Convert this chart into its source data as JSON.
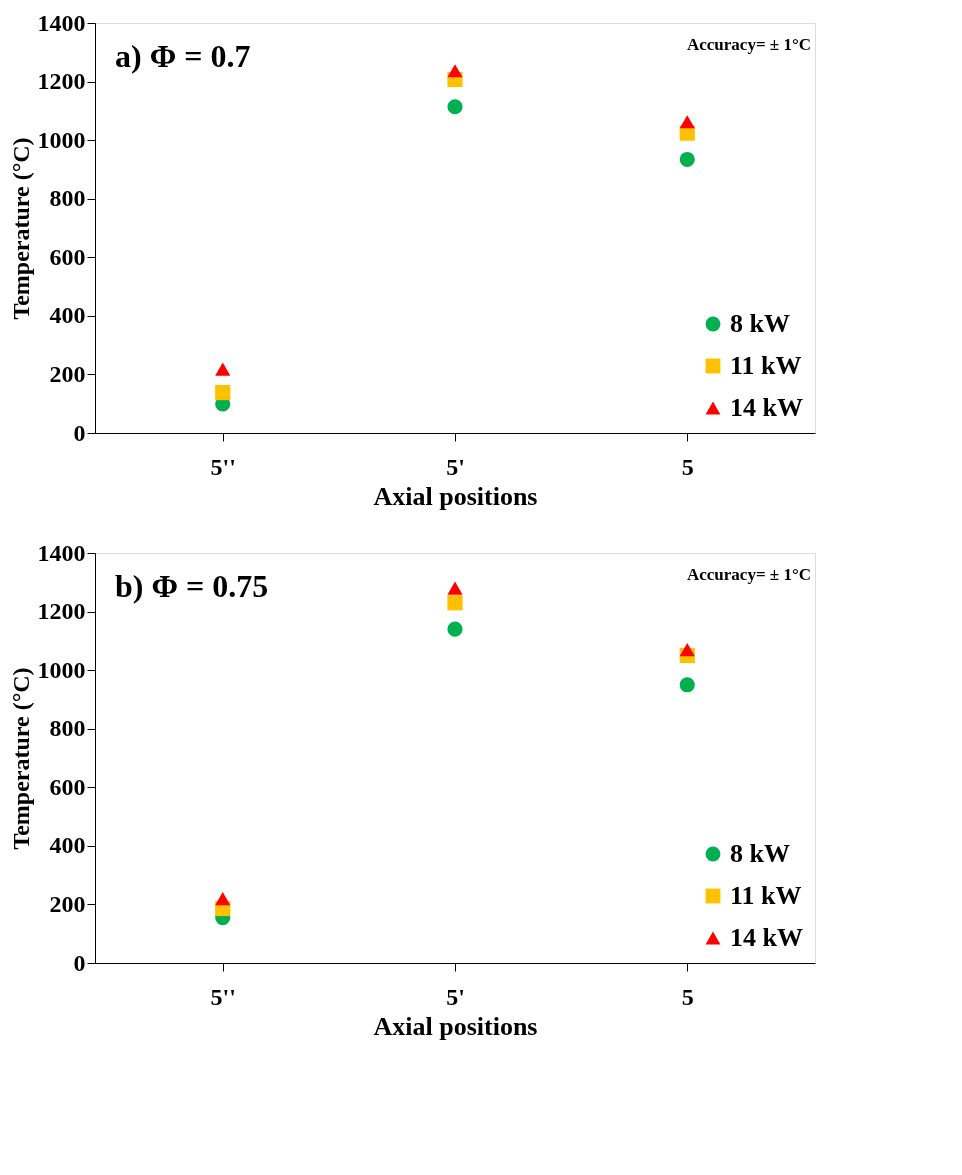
{
  "chart_data": [
    {
      "type": "scatter",
      "title": "a) Φ = 0.7",
      "xlabel": "Axial positions",
      "ylabel": "Temperature (°C)",
      "annotations": [
        "Accuracy= ± 1°C"
      ],
      "categories": [
        "5''",
        "5'",
        "5"
      ],
      "ylim": [
        0,
        1400
      ],
      "yticks": [
        0,
        200,
        400,
        600,
        800,
        1000,
        1200,
        1400
      ],
      "grid": false,
      "legend": "bottom right",
      "series": [
        {
          "name": "8 kW",
          "color": "#00b050",
          "marker": "circle",
          "values": [
            99,
            1114,
            934
          ]
        },
        {
          "name": "11 kW",
          "color": "#ffc000",
          "marker": "square",
          "values": [
            138,
            1207,
            1024
          ]
        },
        {
          "name": "14 kW",
          "color": "#ff0000",
          "marker": "triangle",
          "values": [
            218,
            1237,
            1063
          ]
        }
      ]
    },
    {
      "type": "scatter",
      "title": "b) Φ = 0.75",
      "xlabel": "Axial positions",
      "ylabel": "Temperature (°C)",
      "annotations": [
        "Accuracy= ± 1°C"
      ],
      "categories": [
        "5''",
        "5'",
        "5"
      ],
      "ylim": [
        0,
        1400
      ],
      "yticks": [
        0,
        200,
        400,
        600,
        800,
        1000,
        1200,
        1400
      ],
      "grid": false,
      "legend": "bottom right",
      "series": [
        {
          "name": "8 kW",
          "color": "#00b050",
          "marker": "circle",
          "values": [
            155,
            1140,
            950
          ]
        },
        {
          "name": "11 kW",
          "color": "#ffc000",
          "marker": "square",
          "values": [
            186,
            1230,
            1050
          ]
        },
        {
          "name": "14 kW",
          "color": "#ff0000",
          "marker": "triangle",
          "values": [
            220,
            1280,
            1070
          ]
        }
      ]
    }
  ]
}
